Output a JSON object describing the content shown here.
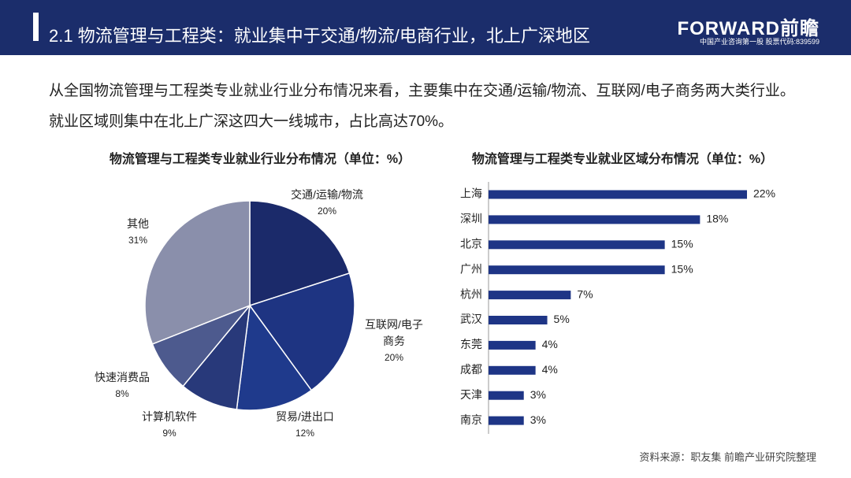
{
  "header": {
    "title": "2.1 物流管理与工程类：就业集中于交通/物流/电商行业，北上广深地区",
    "logo": "FORWARD前瞻",
    "logo_sub": "中国产业咨询第一股  股票代码:839599"
  },
  "intro": "从全国物流管理与工程类专业就业行业分布情况来看，主要集中在交通/运输/物流、互联网/电子商务两大类行业。就业区域则集中在北上广深这四大一线城市，占比高达70%。",
  "source": "资料来源：职友集 前瞻产业研究院整理",
  "chart_data": [
    {
      "type": "pie",
      "title": "物流管理与工程类专业就业行业分布情况（单位：%）",
      "categories": [
        "交通/运输/物流",
        "互联网/电子商务",
        "贸易/进出口",
        "计算机软件",
        "快速消费品",
        "其他"
      ],
      "values": [
        20,
        20,
        12,
        9,
        8,
        31
      ],
      "value_labels": [
        "20%",
        "20%",
        "12%",
        "9%",
        "8%",
        "31%"
      ],
      "colors": [
        "#1b2a6a",
        "#1e3482",
        "#1f3a8c",
        "#28397a",
        "#4d5a8e",
        "#8a8fab"
      ]
    },
    {
      "type": "hbar",
      "title": "物流管理与工程类专业就业区域分布情况（单位：%）",
      "categories": [
        "上海",
        "深圳",
        "北京",
        "广州",
        "杭州",
        "武汉",
        "东莞",
        "成都",
        "天津",
        "南京"
      ],
      "values": [
        22,
        18,
        15,
        15,
        7,
        5,
        4,
        4,
        3,
        3
      ],
      "value_labels": [
        "22%",
        "18%",
        "15%",
        "15%",
        "7%",
        "5%",
        "4%",
        "4%",
        "3%",
        "3%"
      ],
      "color": "#1e3586"
    }
  ]
}
